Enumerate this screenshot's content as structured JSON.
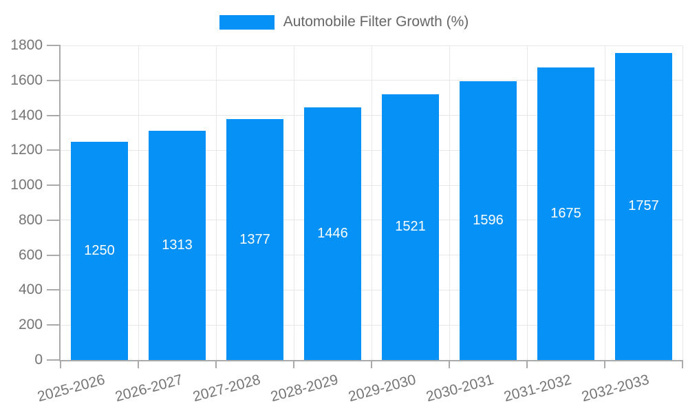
{
  "chart_data": {
    "type": "bar",
    "title": "",
    "legend": {
      "label": "Automobile Filter Growth (%)",
      "position": "top-center"
    },
    "categories": [
      "2025-2026",
      "2026-2027",
      "2027-2028",
      "2028-2029",
      "2029-2030",
      "2030-2031",
      "2031-2032",
      "2032-2033"
    ],
    "values": [
      1250,
      1313,
      1377,
      1446,
      1521,
      1596,
      1675,
      1757
    ],
    "value_labels": [
      "1250",
      "1313",
      "1377",
      "1446",
      "1521",
      "1596",
      "1675",
      "1757"
    ],
    "xlabel": "",
    "ylabel": "",
    "ylim": [
      0,
      1800
    ],
    "ytick_step": 200,
    "ytick_labels": [
      "0",
      "200",
      "400",
      "600",
      "800",
      "1000",
      "1200",
      "1400",
      "1600",
      "1800"
    ],
    "grid": true,
    "x_label_rotation_deg": -15,
    "colors": {
      "bar": "#0591f5",
      "grid": "#e7e7e7",
      "axis": "#aaaaaa",
      "tick_text": "#757575",
      "legend_text": "#666666",
      "value_text": "#ffffff",
      "background": "#ffffff"
    }
  }
}
